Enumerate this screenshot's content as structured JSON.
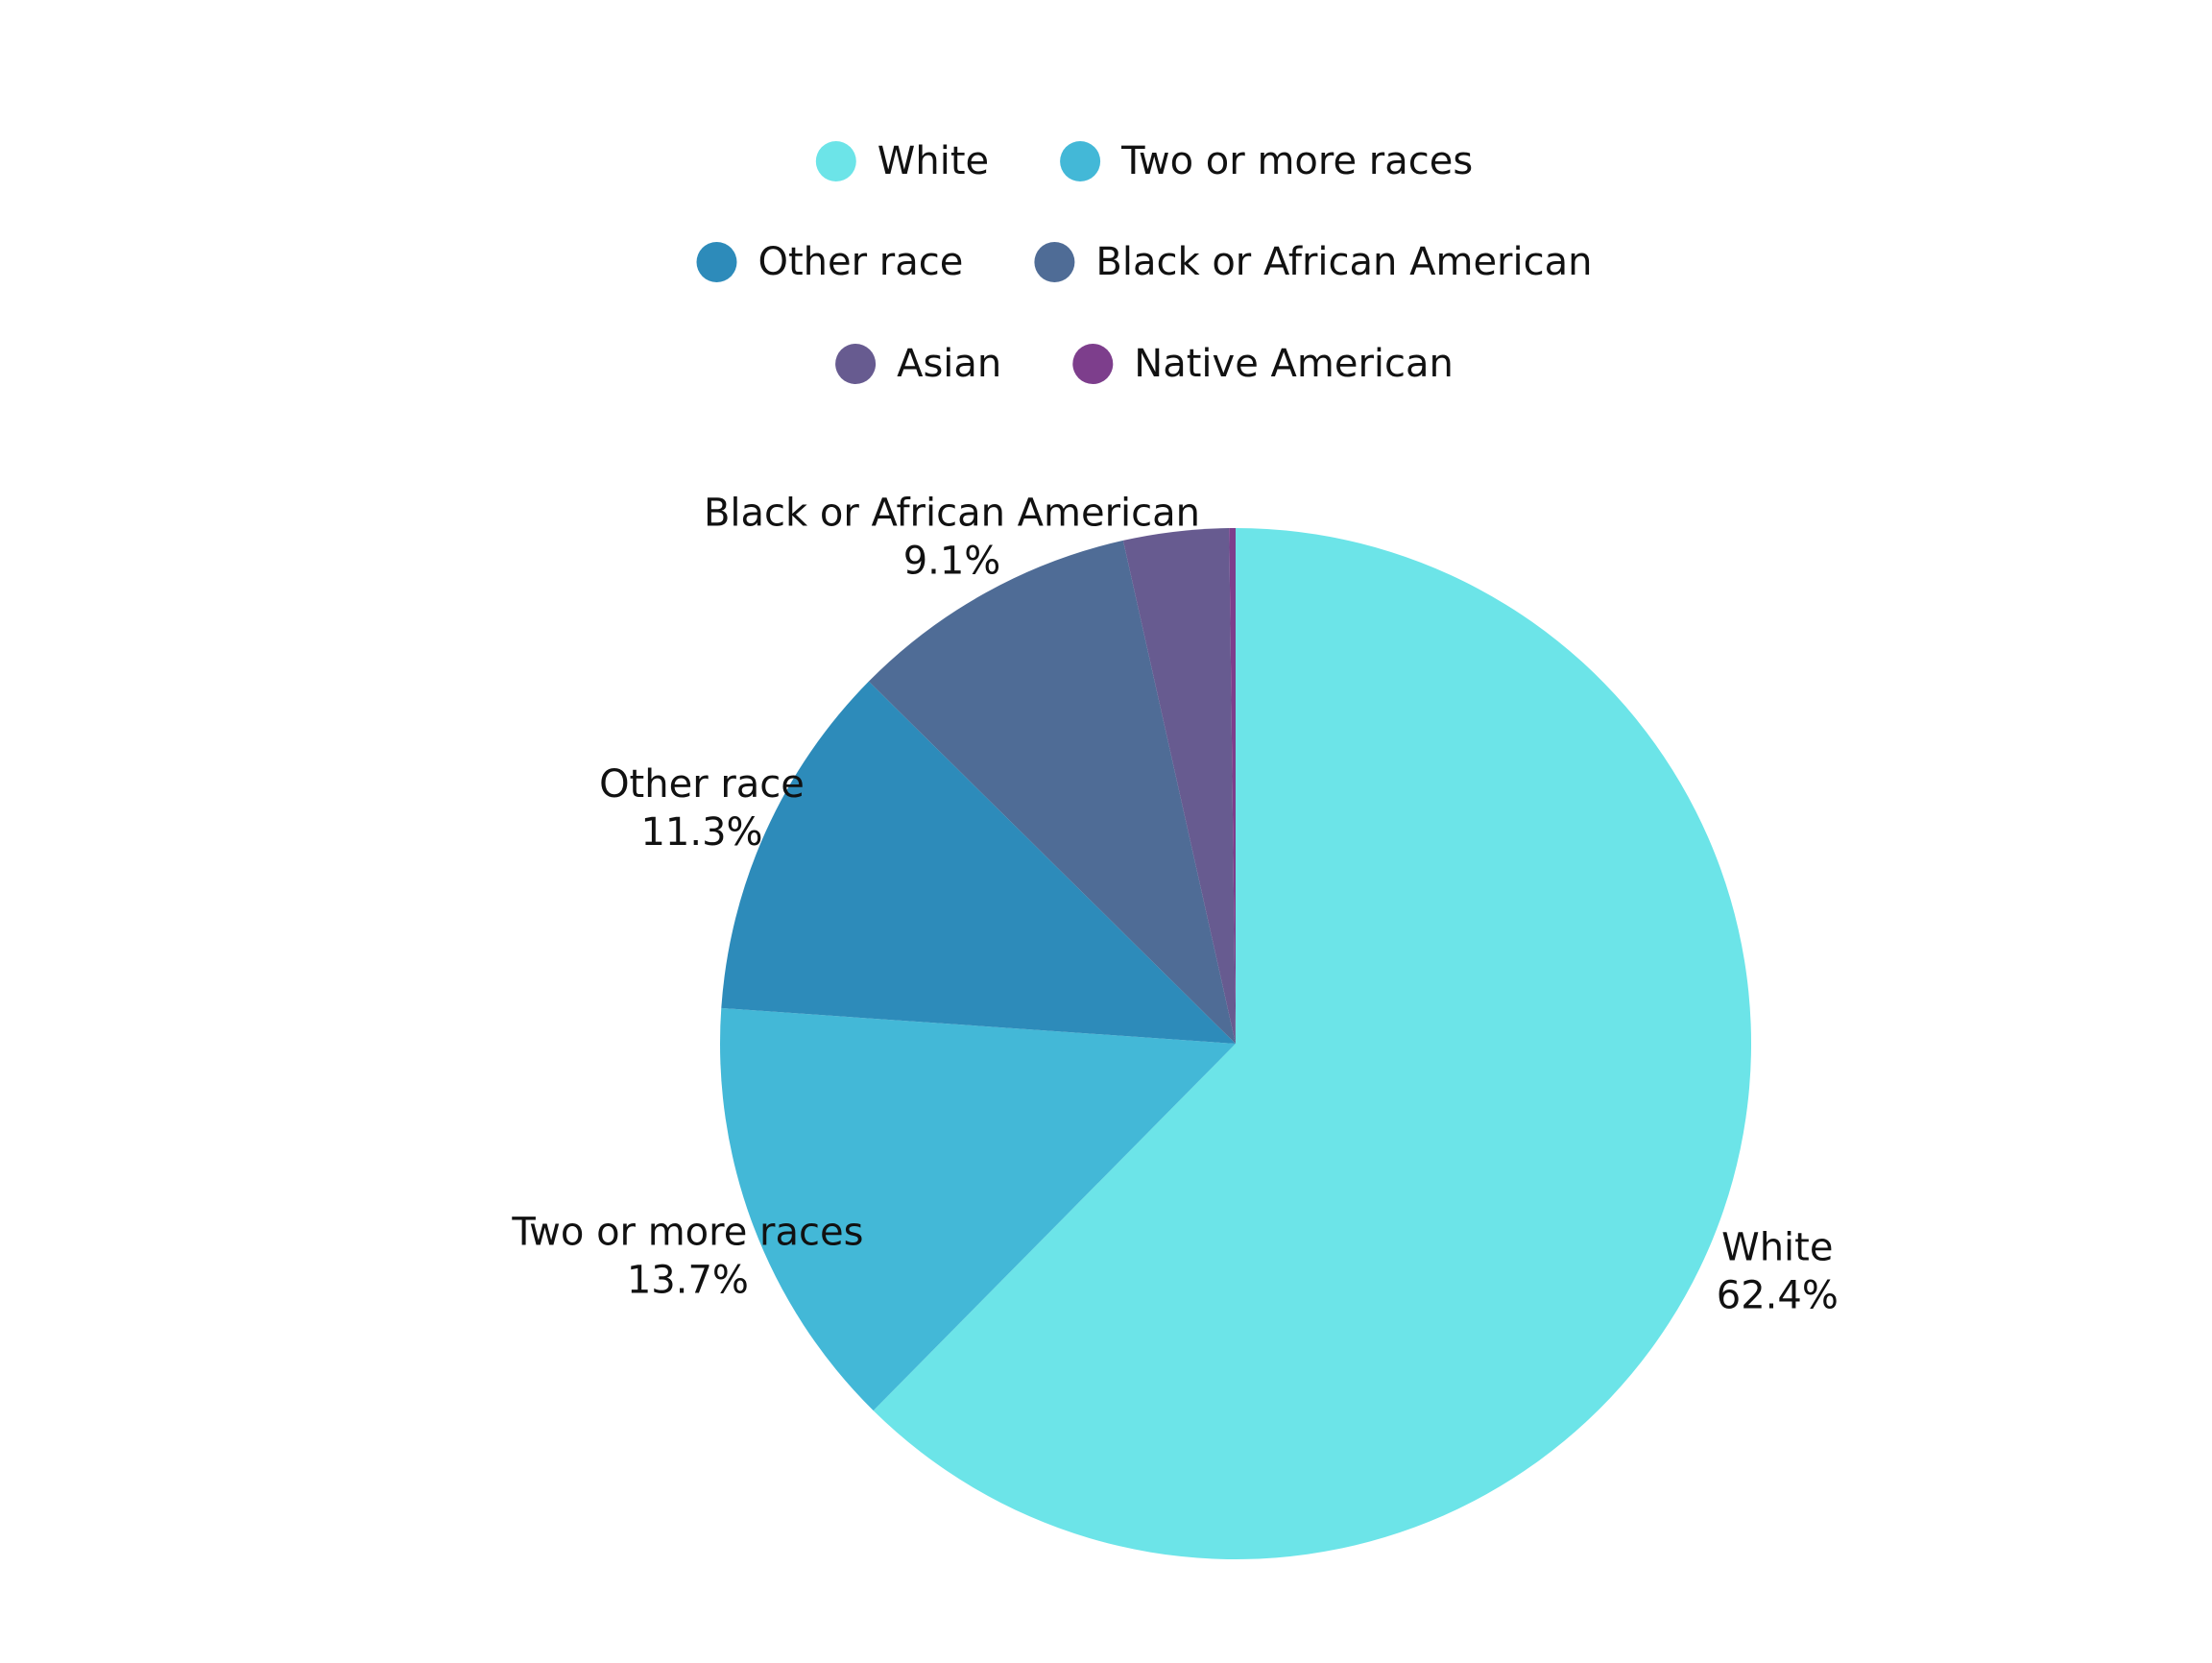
{
  "chart_data": {
    "type": "pie",
    "title": "",
    "legend_position": "top",
    "slices": [
      {
        "label": "White",
        "value": 62.4,
        "value_label": "62.4%",
        "color": "#6ce4e8"
      },
      {
        "label": "Two or more races",
        "value": 13.7,
        "value_label": "13.7%",
        "color": "#43b8d7"
      },
      {
        "label": "Other race",
        "value": 11.3,
        "value_label": "11.3%",
        "color": "#2d8bba"
      },
      {
        "label": "Black or African American",
        "value": 9.1,
        "value_label": "9.1%",
        "color": "#4f6c96"
      },
      {
        "label": "Asian",
        "value": 3.3,
        "value_label": "",
        "color": "#675b90"
      },
      {
        "label": "Native American",
        "value": 0.2,
        "value_label": "",
        "color": "#7d3e8c"
      }
    ]
  }
}
